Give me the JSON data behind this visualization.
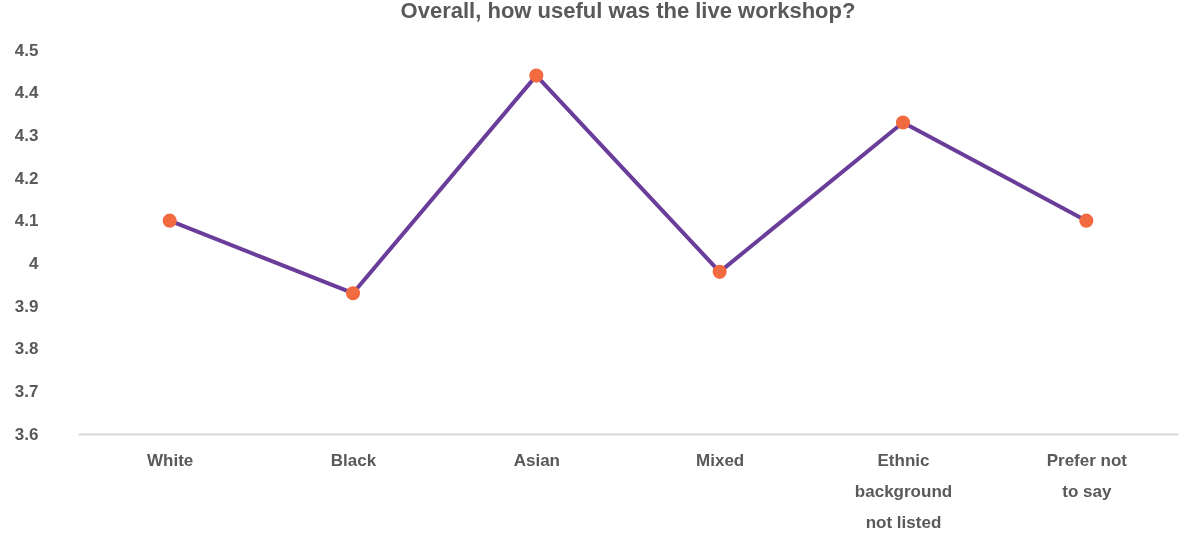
{
  "chart_data": {
    "type": "line",
    "title": "Overall, how useful was the live workshop?",
    "categories": [
      "White",
      "Black",
      "Asian",
      "Mixed",
      "Ethnic background not listed",
      "Prefer not to say"
    ],
    "series": [
      {
        "color": "#6a3d9a",
        "colors": [
          "#f26a3f",
          "#f26a3f",
          "#f26a3f",
          "#f26a3f",
          "#f26a3f",
          "#f26a3f"
        ],
        "values": [
          4.1,
          3.93,
          4.44,
          3.98,
          4.33,
          4.1
        ]
      }
    ],
    "marker": "circle",
    "ylim": [
      3.6,
      4.5
    ],
    "yticks": [
      3.6,
      3.7,
      3.8,
      3.9,
      4,
      4.1,
      4.2,
      4.3,
      4.4,
      4.5
    ],
    "grid": false,
    "legend": false
  }
}
